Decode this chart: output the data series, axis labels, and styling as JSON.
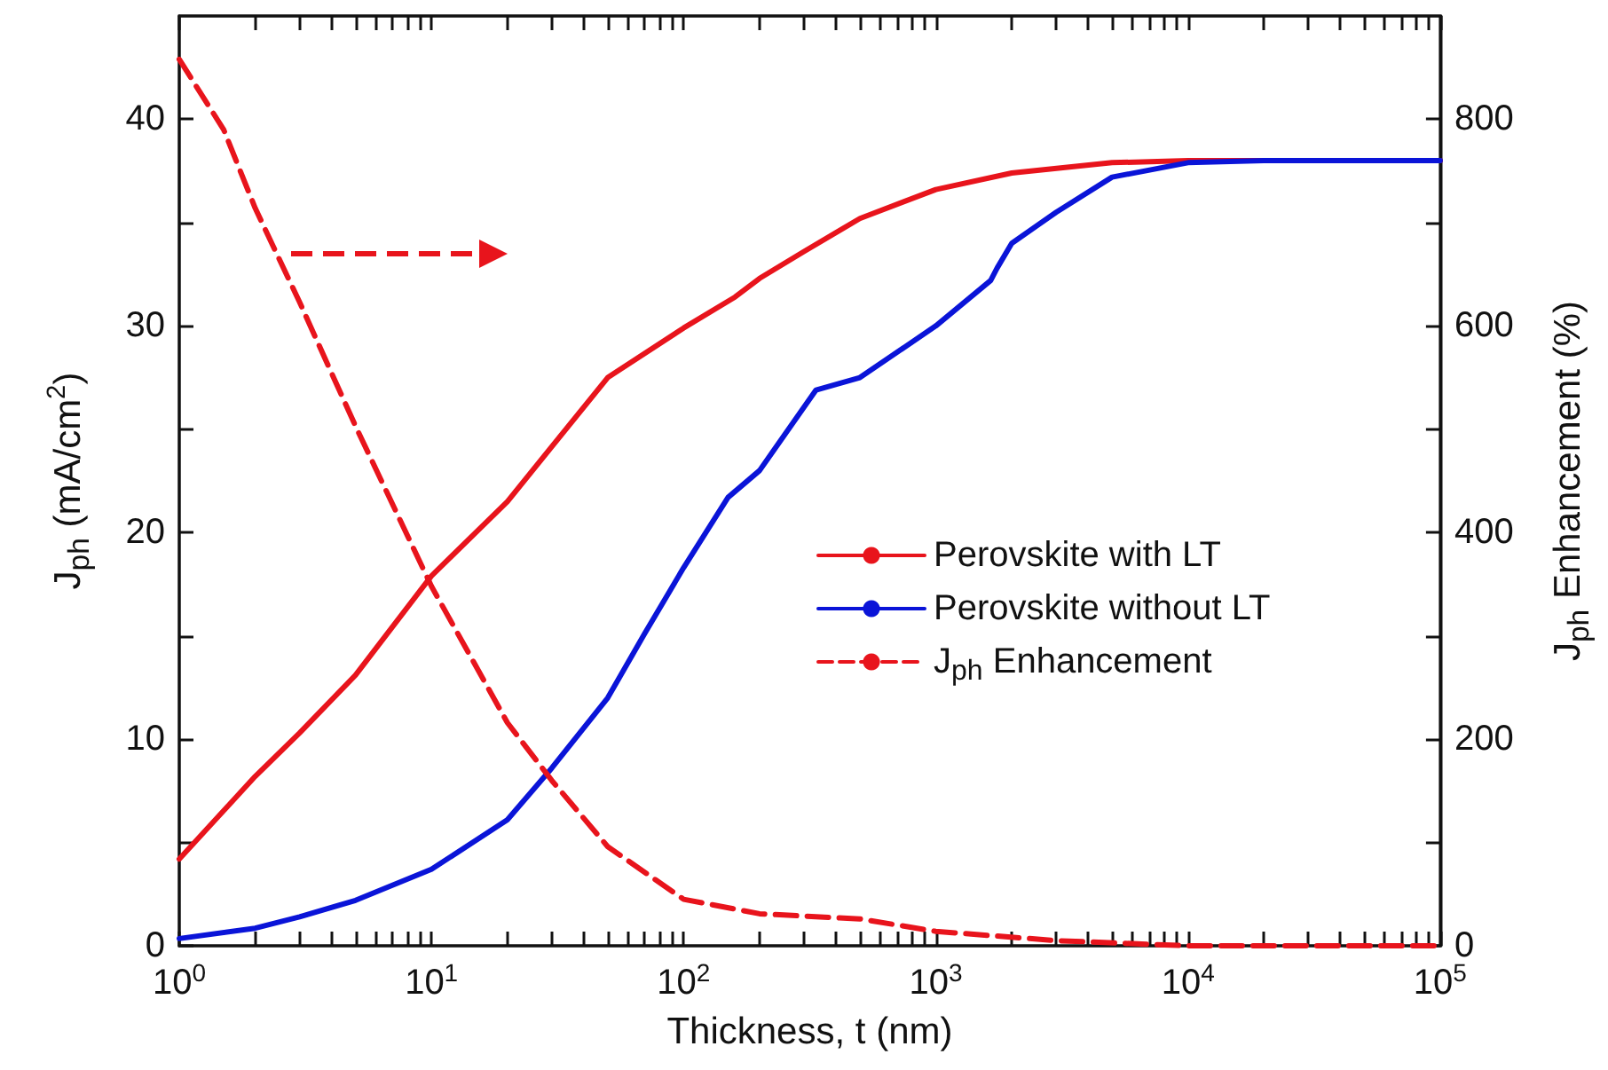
{
  "chart_data": {
    "type": "line",
    "xlabel": "Thickness, t (nm)",
    "ylabel": "J$_{ph}$ (mA/cm$^{2}$)",
    "y2label": "J$_{ph}$ Enhancement (%)",
    "log": "x",
    "legend": "right",
    "xlim": [
      1,
      100000
    ],
    "xticks": [
      {
        "value": 1,
        "label": "10$^{0}$"
      },
      {
        "value": 2,
        "label": null
      },
      {
        "value": 3,
        "label": null
      },
      {
        "value": 4,
        "label": null
      },
      {
        "value": 5,
        "label": null
      },
      {
        "value": 6,
        "label": null
      },
      {
        "value": 7,
        "label": null
      },
      {
        "value": 8,
        "label": null
      },
      {
        "value": 9,
        "label": null
      },
      {
        "value": 10,
        "label": "10$^{1}$"
      },
      {
        "value": 20,
        "label": null
      },
      {
        "value": 30,
        "label": null
      },
      {
        "value": 40,
        "label": null
      },
      {
        "value": 50,
        "label": null
      },
      {
        "value": 60,
        "label": null
      },
      {
        "value": 70,
        "label": null
      },
      {
        "value": 80,
        "label": null
      },
      {
        "value": 90,
        "label": null
      },
      {
        "value": 100,
        "label": "10$^{2}$"
      },
      {
        "value": 200,
        "label": null
      },
      {
        "value": 300,
        "label": null
      },
      {
        "value": 400,
        "label": null
      },
      {
        "value": 500,
        "label": null
      },
      {
        "value": 600,
        "label": null
      },
      {
        "value": 700,
        "label": null
      },
      {
        "value": 800,
        "label": null
      },
      {
        "value": 900,
        "label": null
      },
      {
        "value": 1000,
        "label": "10$^{3}$"
      },
      {
        "value": 2000,
        "label": null
      },
      {
        "value": 3000,
        "label": null
      },
      {
        "value": 4000,
        "label": null
      },
      {
        "value": 5000,
        "label": null
      },
      {
        "value": 6000,
        "label": null
      },
      {
        "value": 7000,
        "label": null
      },
      {
        "value": 8000,
        "label": null
      },
      {
        "value": 9000,
        "label": null
      },
      {
        "value": 10000,
        "label": "10$^{4}$"
      },
      {
        "value": 20000,
        "label": null
      },
      {
        "value": 30000,
        "label": null
      },
      {
        "value": 40000,
        "label": null
      },
      {
        "value": 50000,
        "label": null
      },
      {
        "value": 60000,
        "label": null
      },
      {
        "value": 70000,
        "label": null
      },
      {
        "value": 80000,
        "label": null
      },
      {
        "value": 90000,
        "label": null
      },
      {
        "value": 100000,
        "label": "10$^{5}$"
      }
    ],
    "ylim": [
      0,
      45
    ],
    "yticks": [
      0,
      {
        "value": 5,
        "label": null
      },
      10,
      {
        "value": 15,
        "label": null
      },
      20,
      {
        "value": 25,
        "label": null
      },
      30,
      {
        "value": 35,
        "label": null
      },
      40
    ],
    "y2lim": [
      0,
      900
    ],
    "y2ticks": [
      0,
      {
        "value": 100,
        "label": null
      },
      200,
      {
        "value": 300,
        "label": null
      },
      400,
      {
        "value": 500,
        "label": null
      },
      600,
      {
        "value": 700,
        "label": null
      },
      800
    ],
    "series": [
      {
        "name": "Perovskite with LT",
        "color": "#e8141c",
        "line_style": "solid",
        "x": [
          1,
          2,
          3,
          5,
          10,
          20,
          50,
          100,
          160,
          200,
          300,
          500,
          1000,
          2000,
          5000,
          10000,
          100000
        ],
        "values": [
          4.2,
          8.2,
          10.3,
          13.1,
          17.9,
          21.5,
          27.5,
          29.9,
          31.4,
          32.3,
          33.6,
          35.2,
          36.6,
          37.4,
          37.9,
          38,
          38
        ]
      },
      {
        "name": "Perovskite without LT",
        "color": "#0a14d8",
        "line_style": "solid",
        "x": [
          1,
          2,
          3,
          5,
          10,
          20,
          30,
          50,
          70,
          100,
          150,
          200,
          335,
          500,
          1000,
          1650,
          1750,
          2000,
          3000,
          5000,
          10000,
          20000,
          100000
        ],
        "values": [
          0.35,
          0.85,
          1.4,
          2.2,
          3.7,
          6.1,
          8.6,
          12,
          15.1,
          18.3,
          21.7,
          23,
          26.9,
          27.5,
          30,
          32.2,
          32.8,
          34,
          35.5,
          37.2,
          37.9,
          38,
          38
        ]
      },
      {
        "name": "J$_{ph}$ Enhancement",
        "color": "#e8141c",
        "line_style": "dashed",
        "axis": "y2",
        "x": [
          1,
          1.5,
          2,
          3,
          5,
          10,
          20,
          30,
          50,
          100,
          200,
          500,
          1000,
          3000,
          10000,
          100000
        ],
        "values": [
          858,
          790,
          714,
          623,
          503,
          348,
          216,
          160,
          96,
          45,
          31,
          26,
          14,
          5,
          0,
          0
        ]
      }
    ]
  }
}
